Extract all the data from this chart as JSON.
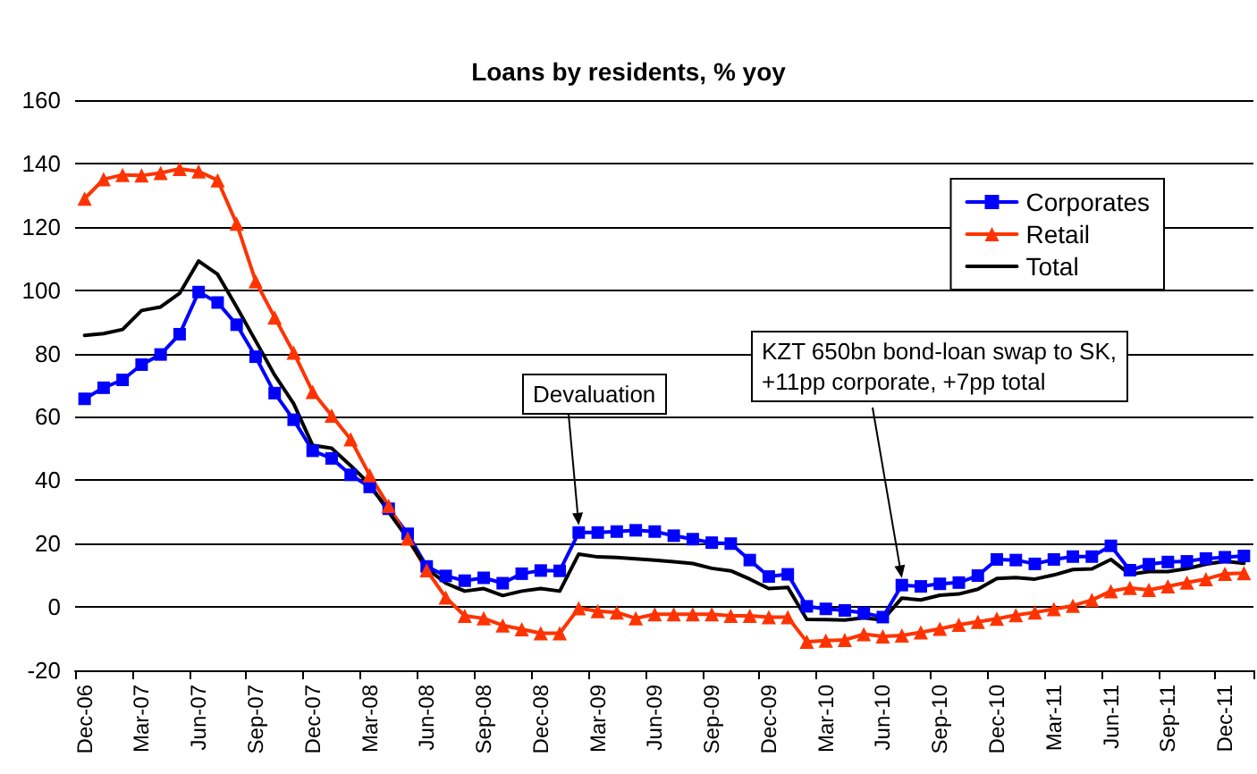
{
  "chart_data": {
    "type": "line",
    "title": "Loans by residents, % yoy",
    "categories": [
      "Dec-06",
      null,
      null,
      "Mar-07",
      null,
      null,
      "Jun-07",
      null,
      null,
      "Sep-07",
      null,
      null,
      "Dec-07",
      null,
      null,
      "Mar-08",
      null,
      null,
      "Jun-08",
      null,
      null,
      "Sep-08",
      null,
      null,
      "Dec-08",
      null,
      null,
      "Mar-09",
      null,
      null,
      "Jun-09",
      null,
      null,
      "Sep-09",
      null,
      null,
      "Dec-09",
      null,
      null,
      "Mar-10",
      null,
      null,
      "Jun-10",
      null,
      null,
      "Sep-10",
      null,
      null,
      "Dec-10",
      null,
      null,
      "Mar-11",
      null,
      null,
      "Jun-11",
      null,
      null,
      "Sep-11",
      null,
      null,
      "Dec-11",
      null
    ],
    "series": [
      {
        "name": "Corporates",
        "color": "#0000ff",
        "marker": "square",
        "values": [
          65.7,
          69.2,
          71.7,
          76.5,
          79.7,
          86.1,
          99.4,
          96.1,
          89.1,
          79,
          67.5,
          59.1,
          49.3,
          46.9,
          41.7,
          37.9,
          31,
          23.1,
          12.8,
          9.8,
          8.3,
          9.2,
          7.5,
          10.5,
          11.5,
          11.4,
          23.5,
          23.5,
          23.8,
          24.2,
          23.8,
          22.5,
          21.4,
          20.3,
          20,
          14.8,
          9.6,
          10.3,
          0.2,
          -0.6,
          -1.1,
          -1.9,
          -3.2,
          6.9,
          6.5,
          7.3,
          7.7,
          9.9,
          15,
          14.8,
          13.6,
          15,
          15.9,
          15.9,
          19.3,
          11.6,
          13.5,
          14.2,
          14.4,
          15.3,
          15.7,
          16.1
        ]
      },
      {
        "name": "Retail",
        "color": "#ff3300",
        "marker": "triangle",
        "values": [
          128.9,
          135,
          136.4,
          136.2,
          137,
          138.3,
          137.5,
          134.7,
          121,
          102.8,
          91.4,
          80.3,
          67.9,
          60.4,
          52.9,
          41.6,
          31.9,
          21.6,
          11.6,
          3,
          -2.8,
          -3.6,
          -5.8,
          -7,
          -8.3,
          -8.3,
          -0.4,
          -1.3,
          -1.7,
          -3.6,
          -2.3,
          -2.3,
          -2.3,
          -2.3,
          -2.8,
          -2.8,
          -3.2,
          -3.2,
          -11,
          -10.6,
          -10.4,
          -8.6,
          -9.3,
          -9,
          -8,
          -6.9,
          -5.6,
          -4.7,
          -3.7,
          -2.6,
          -1.7,
          -0.7,
          0.4,
          2.2,
          5,
          6,
          5.4,
          6.5,
          7.7,
          8.8,
          10.5,
          10.7
        ]
      },
      {
        "name": "Total",
        "color": "#000000",
        "marker": "none",
        "values": [
          85.7,
          86.3,
          87.6,
          93.6,
          94.7,
          99,
          109.2,
          105,
          94.7,
          84,
          73.2,
          64.2,
          51,
          50.1,
          44.6,
          38.8,
          30,
          21.6,
          12.2,
          7.5,
          5,
          5.8,
          3.6,
          5,
          5.8,
          5,
          16.7,
          15.8,
          15.6,
          15.2,
          14.8,
          14.3,
          13.7,
          12.2,
          11.4,
          8.8,
          5.8,
          6.2,
          -3.9,
          -4,
          -4.1,
          -3.4,
          -4.1,
          2.8,
          2.2,
          3.7,
          4.1,
          5.6,
          9,
          9.3,
          8.8,
          10.1,
          11.8,
          12,
          15,
          10.3,
          11.2,
          11.2,
          12.1,
          13.5,
          14.4,
          13.8
        ]
      }
    ],
    "ylim": [
      -20,
      160
    ],
    "yticks": [
      -20,
      0,
      20,
      40,
      60,
      80,
      100,
      120,
      140,
      160
    ],
    "grid": "y",
    "legend": "top right",
    "line_style": "solid",
    "annotations": [
      "Devaluation",
      "KZT 650bn bond-loan swap to SK,\n+11pp corporate, +7pp total"
    ]
  }
}
